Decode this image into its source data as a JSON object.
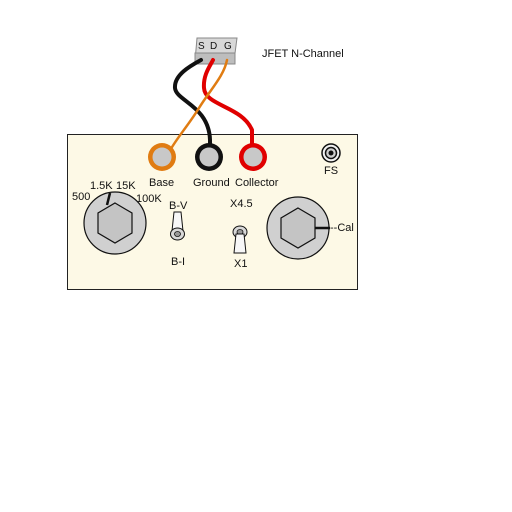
{
  "transistor": {
    "type_label": "JFET N-Channel",
    "pins": [
      "S",
      "D",
      "G"
    ]
  },
  "jacks": {
    "base_label": "Base",
    "ground_label": "Ground",
    "collector_label": "Collector",
    "fs_label": "FS"
  },
  "range_knob": {
    "labels": [
      "500",
      "1.5K",
      "15K",
      "100K"
    ]
  },
  "switch_bv": {
    "top_label": "B-V",
    "bottom_label": "B-I"
  },
  "switch_gain": {
    "top_label": "X4.5",
    "bottom_label": "X1"
  },
  "cal_knob": {
    "label": "--Cal"
  },
  "colors": {
    "panel_fill": "#fdf9e6",
    "base": "#e07c12",
    "ground": "#111111",
    "collector": "#e00000",
    "lead_orange": "#e07c12",
    "lead_black": "#111111",
    "lead_red": "#e00000"
  }
}
